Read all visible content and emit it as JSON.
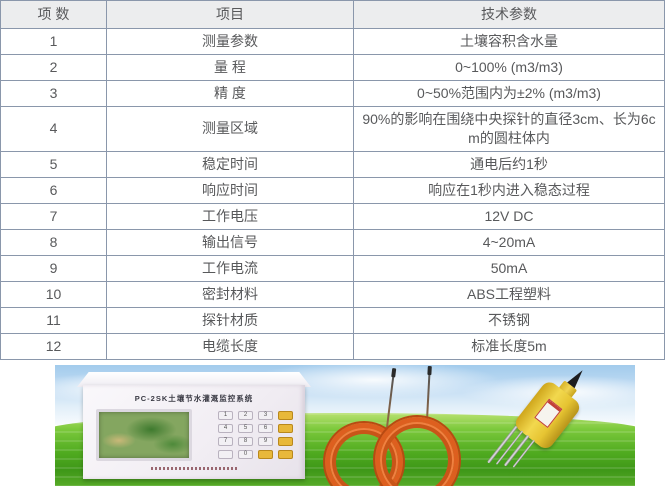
{
  "table": {
    "headers": [
      {
        "label": "项 数"
      },
      {
        "label": "项目"
      },
      {
        "label": "技术参数"
      }
    ],
    "rows": [
      {
        "index": "1",
        "item": "测量参数",
        "param": "土壤容积含水量"
      },
      {
        "index": "2",
        "item": "量 程",
        "param": "0~100%  (m3/m3)"
      },
      {
        "index": "3",
        "item": "精 度",
        "param": "0~50%范围内为±2%  (m3/m3)"
      },
      {
        "index": "4",
        "item": "测量区域",
        "param": "90%的影响在围绕中央探针的直径3cm、长为6cm的圆柱体内"
      },
      {
        "index": "5",
        "item": "稳定时间",
        "param": "通电后约1秒"
      },
      {
        "index": "6",
        "item": "响应时间",
        "param": "响应在1秒内进入稳态过程"
      },
      {
        "index": "7",
        "item": "工作电压",
        "param": "12V DC"
      },
      {
        "index": "8",
        "item": "输出信号",
        "param": "4~20mA"
      },
      {
        "index": "9",
        "item": "工作电流",
        "param": "50mA"
      },
      {
        "index": "10",
        "item": "密封材料",
        "param": "ABS工程塑料"
      },
      {
        "index": "11",
        "item": "探针材质",
        "param": "不锈钢"
      },
      {
        "index": "12",
        "item": "电缆长度",
        "param": "标准长度5m"
      }
    ]
  },
  "photo": {
    "device": {
      "title": "PC-2SK土壤节水灌溉监控系统",
      "keypad": {
        "labels": [
          [
            "1",
            "2",
            "3",
            ""
          ],
          [
            "4",
            "5",
            "6",
            ""
          ],
          [
            "7",
            "8",
            "9",
            ""
          ],
          [
            "",
            "0",
            "",
            ""
          ]
        ],
        "yellow": [
          [
            0,
            0,
            0,
            1
          ],
          [
            0,
            0,
            0,
            1
          ],
          [
            0,
            0,
            0,
            1
          ],
          [
            0,
            0,
            1,
            1
          ]
        ]
      }
    }
  },
  "colors": {
    "table_border": "#8a97ab",
    "header_bg": "#ecedee",
    "text": "#58595b",
    "coil_orange": "#dd5f1f",
    "sensor_yellow": "#e8c83e",
    "grass_green": "#4faa1f",
    "sky_blue": "#a2cbec"
  }
}
